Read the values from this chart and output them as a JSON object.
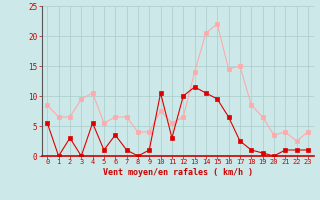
{
  "x": [
    0,
    1,
    2,
    3,
    4,
    5,
    6,
    7,
    8,
    9,
    10,
    11,
    12,
    13,
    14,
    15,
    16,
    17,
    18,
    19,
    20,
    21,
    22,
    23
  ],
  "vent_moyen": [
    5.5,
    0,
    3,
    0,
    5.5,
    1,
    3.5,
    1,
    0,
    1,
    10.5,
    3,
    10,
    11.5,
    10.5,
    9.5,
    6.5,
    2.5,
    1,
    0.5,
    0,
    1,
    1,
    1
  ],
  "en_rafales": [
    8.5,
    6.5,
    6.5,
    9.5,
    10.5,
    5.5,
    6.5,
    6.5,
    4,
    4,
    7.5,
    5.5,
    6.5,
    14,
    20.5,
    22,
    14.5,
    15,
    8.5,
    6.5,
    3.5,
    4,
    2.5,
    4
  ],
  "bg_color": "#cce8e8",
  "line_color_moyen": "#dd0000",
  "line_color_rafales": "#ffaaaa",
  "grid_color": "#aacccc",
  "xlabel": "Vent moyen/en rafales ( km/h )",
  "xlabel_color": "#cc0000",
  "tick_color": "#cc0000",
  "ylim": [
    0,
    25
  ],
  "xlim": [
    -0.5,
    23.5
  ],
  "yticks": [
    0,
    5,
    10,
    15,
    20,
    25
  ],
  "xticks": [
    0,
    1,
    2,
    3,
    4,
    5,
    6,
    7,
    8,
    9,
    10,
    11,
    12,
    13,
    14,
    15,
    16,
    17,
    18,
    19,
    20,
    21,
    22,
    23
  ]
}
